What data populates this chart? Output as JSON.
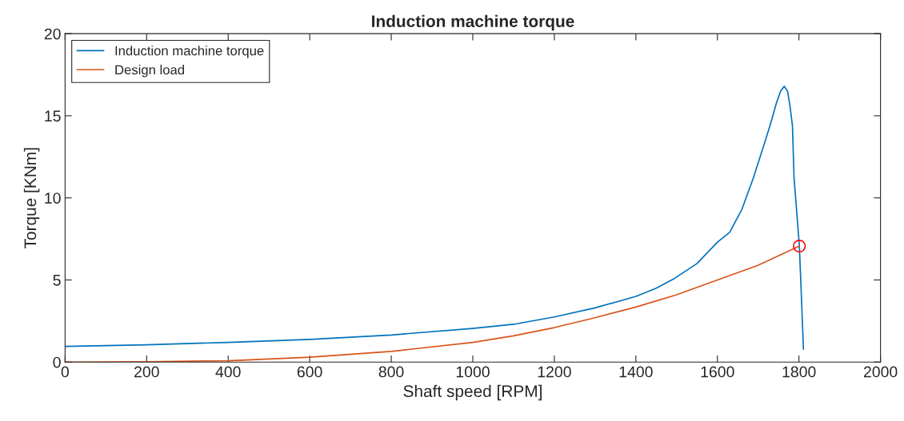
{
  "chart_data": {
    "type": "line",
    "title": "Induction machine torque",
    "xlabel": "Shaft speed [RPM]",
    "ylabel": "Torque [KNm]",
    "xlim": [
      0,
      2000
    ],
    "xticks": [
      0,
      200,
      400,
      600,
      800,
      1000,
      1200,
      1400,
      1600,
      1800,
      2000
    ],
    "ylim": [
      0,
      20
    ],
    "yticks": [
      0,
      5,
      10,
      15,
      20
    ],
    "grid": false,
    "legend": "top left",
    "series": [
      {
        "name": "Induction machine torque",
        "color": "#0072bd",
        "x": [
          0,
          200,
          400,
          600,
          800,
          1000,
          1100,
          1200,
          1300,
          1400,
          1450,
          1495,
          1550,
          1600,
          1630,
          1660,
          1688,
          1710,
          1729,
          1745,
          1755,
          1764,
          1772,
          1778,
          1784,
          1788,
          1795,
          1801,
          1806,
          1811
        ],
        "values": [
          0.95,
          1.05,
          1.2,
          1.38,
          1.65,
          2.05,
          2.3,
          2.75,
          3.3,
          4.0,
          4.5,
          5.1,
          6.0,
          7.3,
          7.9,
          9.3,
          11.2,
          12.9,
          14.4,
          15.8,
          16.5,
          16.8,
          16.5,
          15.6,
          14.4,
          11.2,
          9.0,
          7.06,
          4.0,
          0.78
        ]
      },
      {
        "name": "Design load",
        "color": "#d95319",
        "x": [
          0,
          200,
          400,
          600,
          800,
          1000,
          1100,
          1200,
          1300,
          1400,
          1500,
          1600,
          1700,
          1801
        ],
        "values": [
          0.0,
          0.02,
          0.08,
          0.3,
          0.65,
          1.2,
          1.6,
          2.1,
          2.7,
          3.35,
          4.1,
          5.0,
          5.9,
          7.06
        ]
      },
      {
        "type": "scatter",
        "color": "#ff0000",
        "marker": "circle",
        "x": [
          1801
        ],
        "values": [
          7.06
        ]
      }
    ]
  }
}
